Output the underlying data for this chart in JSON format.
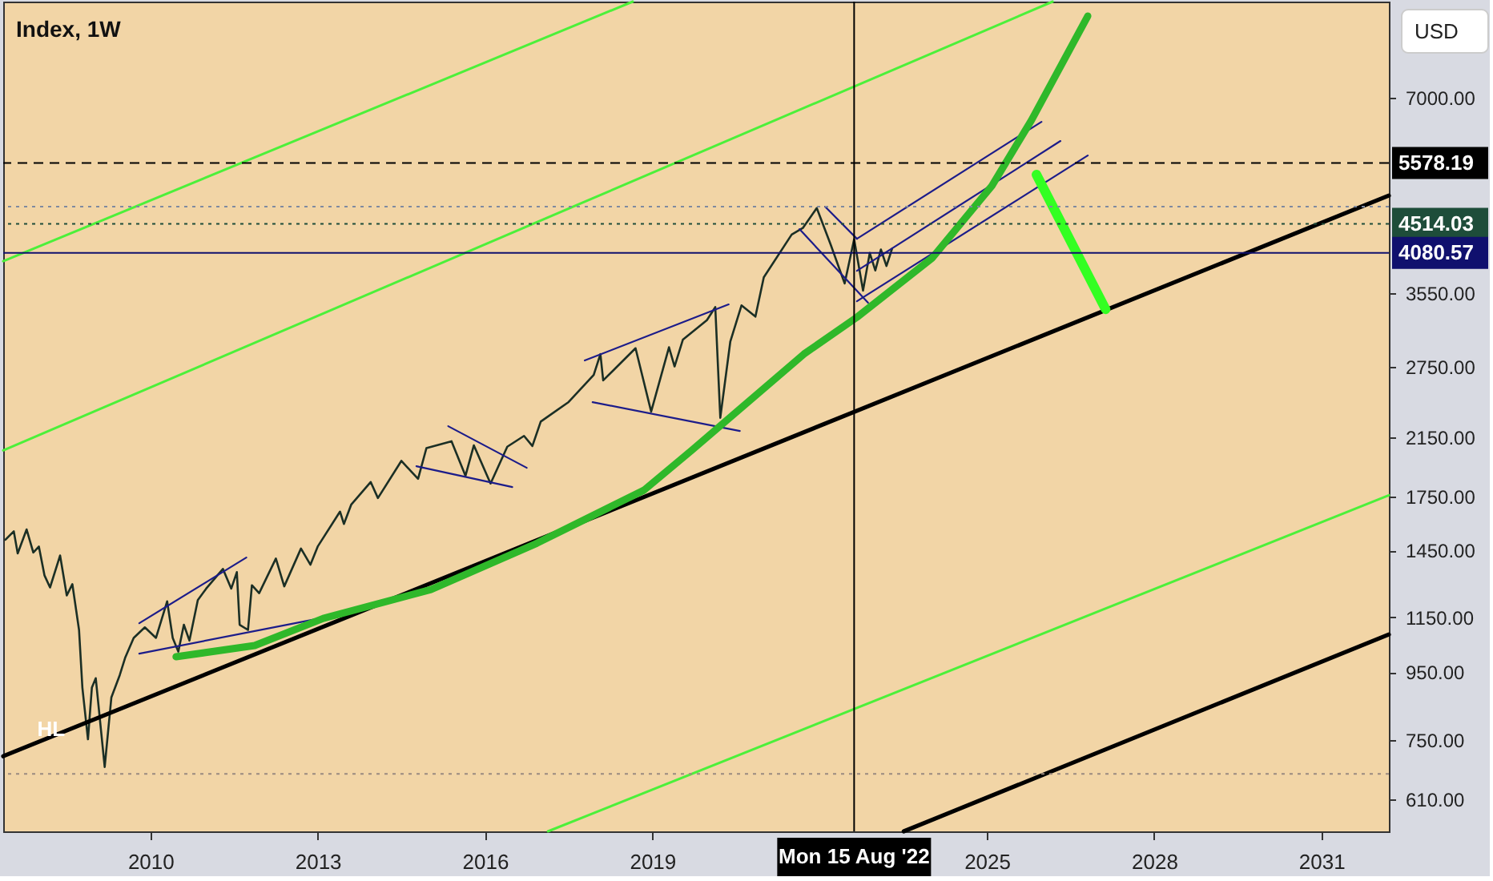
{
  "chart_data": {
    "type": "line",
    "title": "Index, 1W",
    "log": "y",
    "xlim": [
      2007.36,
      2032.21
    ],
    "xticks": [
      2010,
      2013,
      2016,
      2019,
      2025,
      2028,
      2031
    ],
    "ylim": [
      546,
      9780
    ],
    "yticks": [
      {
        "value": 610,
        "label": "610.00"
      },
      {
        "value": 750,
        "label": "750.00"
      },
      {
        "value": 950,
        "label": "950.00"
      },
      {
        "value": 1150,
        "label": "1150.00"
      },
      {
        "value": 1450,
        "label": "1450.00"
      },
      {
        "value": 1750,
        "label": "1750.00"
      },
      {
        "value": 2150,
        "label": "2150.00"
      },
      {
        "value": 2750,
        "label": "2750.00"
      },
      {
        "value": 3550,
        "label": "3550.00"
      },
      {
        "value": 7000,
        "label": "7000.00"
      }
    ],
    "grid": false,
    "series": [
      {
        "color": "#1b2f25",
        "x": [
          2007.4,
          2007.55,
          2007.62,
          2007.78,
          2007.9,
          2008.0,
          2008.1,
          2008.2,
          2008.38,
          2008.5,
          2008.6,
          2008.72,
          2008.78,
          2008.88,
          2008.95,
          2009.02,
          2009.18,
          2009.3,
          2009.45,
          2009.55,
          2009.7,
          2009.9,
          2010.1,
          2010.3,
          2010.4,
          2010.5,
          2010.6,
          2010.7,
          2010.85,
          2011.0,
          2011.3,
          2011.45,
          2011.55,
          2011.6,
          2011.75,
          2011.82,
          2011.95,
          2012.25,
          2012.4,
          2012.7,
          2012.87,
          2013.0,
          2013.4,
          2013.47,
          2013.6,
          2013.95,
          2014.08,
          2014.5,
          2014.8,
          2014.95,
          2015.4,
          2015.65,
          2015.8,
          2016.1,
          2016.4,
          2016.7,
          2016.85,
          2017.0,
          2017.5,
          2017.95,
          2018.07,
          2018.12,
          2018.7,
          2018.98,
          2019.3,
          2019.4,
          2019.55,
          2019.98,
          2020.13,
          2020.22,
          2020.4,
          2020.6,
          2020.85,
          2021.0,
          2021.5,
          2021.7,
          2021.95,
          2022.2,
          2022.45,
          2022.62,
          2022.78,
          2022.9,
          2023.0,
          2023.1,
          2023.2,
          2023.3
        ],
        "values": [
          1505,
          1550,
          1435,
          1560,
          1440,
          1470,
          1330,
          1275,
          1425,
          1240,
          1290,
          1100,
          900,
          752,
          900,
          930,
          683,
          870,
          940,
          1000,
          1070,
          1110,
          1070,
          1215,
          1070,
          1020,
          1120,
          1060,
          1220,
          1270,
          1360,
          1270,
          1345,
          1120,
          1100,
          1285,
          1250,
          1410,
          1280,
          1460,
          1380,
          1470,
          1660,
          1590,
          1700,
          1840,
          1740,
          1980,
          1860,
          2070,
          2120,
          1880,
          2090,
          1830,
          2080,
          2160,
          2085,
          2270,
          2430,
          2670,
          2870,
          2620,
          2930,
          2350,
          2940,
          2750,
          3020,
          3230,
          3380,
          2300,
          3000,
          3400,
          3270,
          3750,
          4350,
          4450,
          4770,
          4200,
          3670,
          4280,
          3580,
          4080,
          3840,
          4130,
          3900,
          4140
        ]
      },
      {
        "color": "#4cf03a",
        "x": [
          2007.36,
          2018.65
        ],
        "values": [
          3966,
          9780
        ]
      },
      {
        "color": "#4cf03a",
        "x": [
          2007.36,
          2026.18
        ],
        "values": [
          2054,
          9780
        ]
      },
      {
        "color": "#4cf03a",
        "x": [
          2017.13,
          2032.21
        ],
        "values": [
          546,
          1757
        ]
      },
      {
        "color": "#000000",
        "x": [
          2007.36,
          2032.21
        ],
        "values": [
          709,
          4983
        ]
      },
      {
        "color": "#000000",
        "x": [
          2023.51,
          2032.21
        ],
        "values": [
          546,
          1083
        ]
      },
      {
        "color": "#1c1c8a",
        "x": [
          2009.8,
          2011.72
        ],
        "values": [
          1126,
          1415
        ]
      },
      {
        "color": "#1c1c8a",
        "x": [
          2009.8,
          2013.33
        ],
        "values": [
          1013,
          1158
        ]
      },
      {
        "color": "#1c1c8a",
        "x": [
          2015.34,
          2016.75
        ],
        "values": [
          2234,
          1933
        ]
      },
      {
        "color": "#1c1c8a",
        "x": [
          2014.77,
          2016.49
        ],
        "values": [
          1944,
          1808
        ]
      },
      {
        "color": "#1c1c8a",
        "x": [
          2017.79,
          2020.37
        ],
        "values": [
          2808,
          3412
        ]
      },
      {
        "color": "#1c1c8a",
        "x": [
          2017.93,
          2020.57
        ],
        "values": [
          2429,
          2197
        ]
      },
      {
        "color": "#1c1c8a",
        "x": [
          2021.64,
          2022.87
        ],
        "values": [
          4433,
          3431
        ]
      },
      {
        "color": "#1c1c8a",
        "x": [
          2022.1,
          2022.67
        ],
        "values": [
          4793,
          4287
        ]
      },
      {
        "color": "#1c1c8a",
        "x": [
          2022.67,
          2025.98
        ],
        "values": [
          4287,
          6439
        ]
      },
      {
        "color": "#1c1c8a",
        "x": [
          2022.67,
          2026.32
        ],
        "values": [
          3835,
          6023
        ]
      },
      {
        "color": "#1c1c8a",
        "x": [
          2022.67,
          2026.81
        ],
        "values": [
          3450,
          5728
        ]
      },
      {
        "color": "#2fb82a",
        "x": [
          2010.46,
          2011.87,
          2013.1,
          2015.03,
          2016.93,
          2018.85,
          2019.71,
          2021.72,
          2022.67,
          2024.02,
          2025.09,
          2025.8,
          2026.81
        ],
        "values": [
          1002,
          1042,
          1145,
          1266,
          1487,
          1788,
          2055,
          2871,
          3263,
          4010,
          5153,
          6475,
          9300
        ]
      },
      {
        "color": "#33ff22",
        "x": [
          2025.89,
          2027.13
        ],
        "values": [
          5358,
          3355
        ]
      }
    ],
    "ref_lines": [
      {
        "axis": "y",
        "value": 5578.19,
        "label": "5578.19",
        "color": "#000000",
        "line_style": "dashed"
      },
      {
        "axis": "y",
        "value": 4795,
        "label": null,
        "color": "#7f8aa0",
        "line_style": "dotted"
      },
      {
        "axis": "y",
        "value": 4514.03,
        "label": "4514.03",
        "color": "#1e4d3a",
        "line_style": "dotted"
      },
      {
        "axis": "y",
        "value": 4080.57,
        "label": "4080.57",
        "color": "#10106e",
        "line_style": "solid"
      },
      {
        "axis": "y",
        "value": 667,
        "label": null,
        "color": "#9a8a80",
        "line_style": "dotted"
      },
      {
        "axis": "x",
        "value": 2022.62,
        "label": "Mon 15 Aug '22",
        "color": "#000000",
        "line_style": "solid"
      }
    ],
    "annotations": [
      {
        "text": "HL",
        "x": 2008.22,
        "y": 778
      },
      "USD"
    ]
  }
}
